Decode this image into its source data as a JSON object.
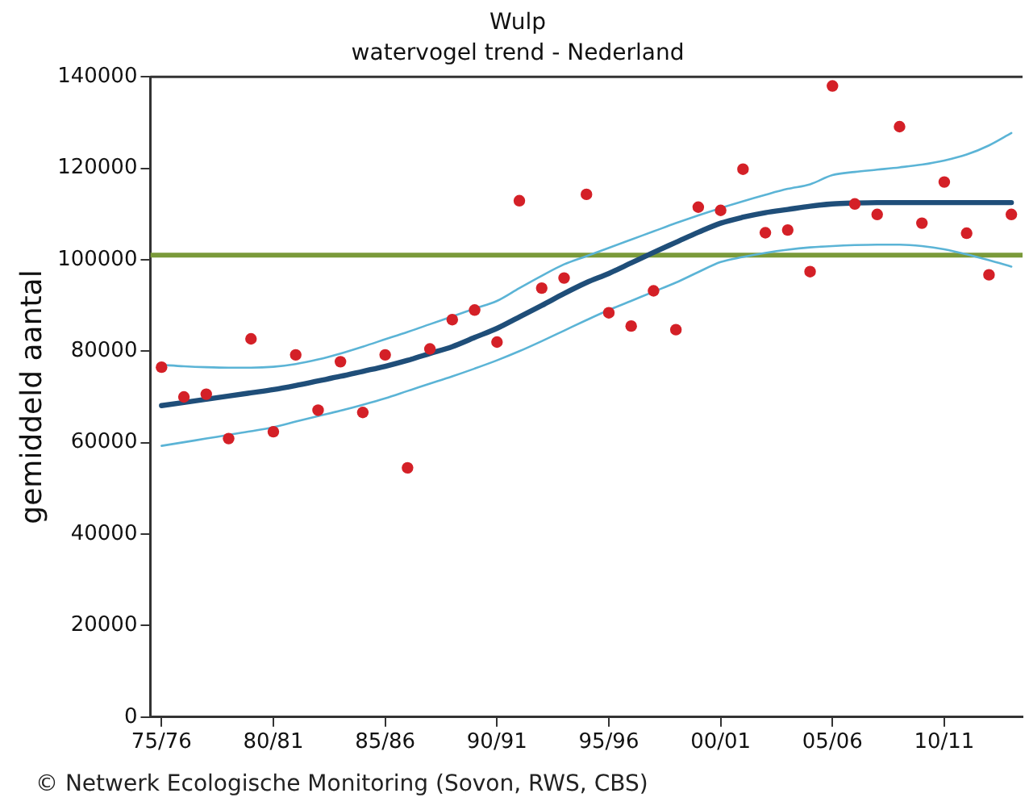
{
  "chart_data": {
    "type": "scatter",
    "title": "Wulp",
    "subtitle": "watervogel trend - Nederland",
    "ylabel": "gemiddeld aantal",
    "annotations": [
      "© Netwerk Ecologische Monitoring (Sovon, RWS, CBS)"
    ],
    "categories": [
      "75/76",
      null,
      null,
      null,
      null,
      "80/81",
      null,
      null,
      null,
      null,
      "85/86",
      null,
      null,
      null,
      null,
      "90/91",
      null,
      null,
      null,
      null,
      "95/96",
      null,
      null,
      null,
      null,
      "00/01",
      null,
      null,
      null,
      null,
      "05/06",
      null,
      null,
      null,
      null,
      "10/11",
      null,
      null,
      null
    ],
    "ylim": [
      0,
      140000
    ],
    "yticks": [
      0,
      20000,
      40000,
      60000,
      80000,
      100000,
      120000,
      140000
    ],
    "grid": false,
    "legend": false,
    "series": [
      {
        "color": "#d42027",
        "marker": "circle",
        "values": [
          76500,
          70000,
          70600,
          60900,
          82700,
          62400,
          79200,
          67100,
          77700,
          66600,
          79200,
          54500,
          80500,
          86900,
          89000,
          82000,
          112900,
          93800,
          96000,
          114300,
          88400,
          85500,
          93200,
          84700,
          111500,
          110800,
          119800,
          105900,
          106500,
          97400,
          138000,
          112200,
          109900,
          129100,
          108000,
          117000,
          105800,
          96700,
          109900
        ]
      },
      {
        "type": "line",
        "color": "#5bb4d6",
        "line_style": "solid",
        "marker": "none",
        "values": [
          77000,
          76700,
          76500,
          76400,
          76400,
          76600,
          77200,
          78200,
          79500,
          81000,
          82600,
          84200,
          85900,
          87600,
          89300,
          91000,
          93800,
          96500,
          99000,
          100800,
          102600,
          104400,
          106200,
          108000,
          109700,
          111300,
          112800,
          114200,
          115500,
          116500,
          118500,
          119200,
          119700,
          120200,
          120800,
          121700,
          123000,
          125000,
          127700
        ]
      },
      {
        "type": "line",
        "color": "#5bb4d6",
        "line_style": "solid",
        "marker": "none",
        "values": [
          59300,
          60100,
          60900,
          61700,
          62500,
          63400,
          64600,
          65800,
          67000,
          68300,
          69700,
          71300,
          72900,
          74500,
          76200,
          78000,
          80000,
          82200,
          84500,
          86800,
          89000,
          91000,
          93000,
          95000,
          97300,
          99500,
          100600,
          101500,
          102200,
          102700,
          103000,
          103200,
          103300,
          103300,
          103000,
          102300,
          101200,
          99900,
          98500
        ]
      },
      {
        "type": "line",
        "color": "#1f4e79",
        "line_style": "solid",
        "marker": "none",
        "values": [
          68100,
          68800,
          69500,
          70200,
          70900,
          71600,
          72500,
          73500,
          74500,
          75600,
          76700,
          78000,
          79500,
          81000,
          83000,
          85000,
          87500,
          90000,
          92600,
          95000,
          97000,
          99300,
          101600,
          103800,
          106000,
          108000,
          109300,
          110300,
          111000,
          111700,
          112200,
          112400,
          112500,
          112500,
          112500,
          112500,
          112500,
          112500,
          112500
        ]
      }
    ],
    "ref_lines": [
      {
        "axis": "y",
        "value": 101000,
        "color": "#7a9a3a"
      }
    ]
  }
}
